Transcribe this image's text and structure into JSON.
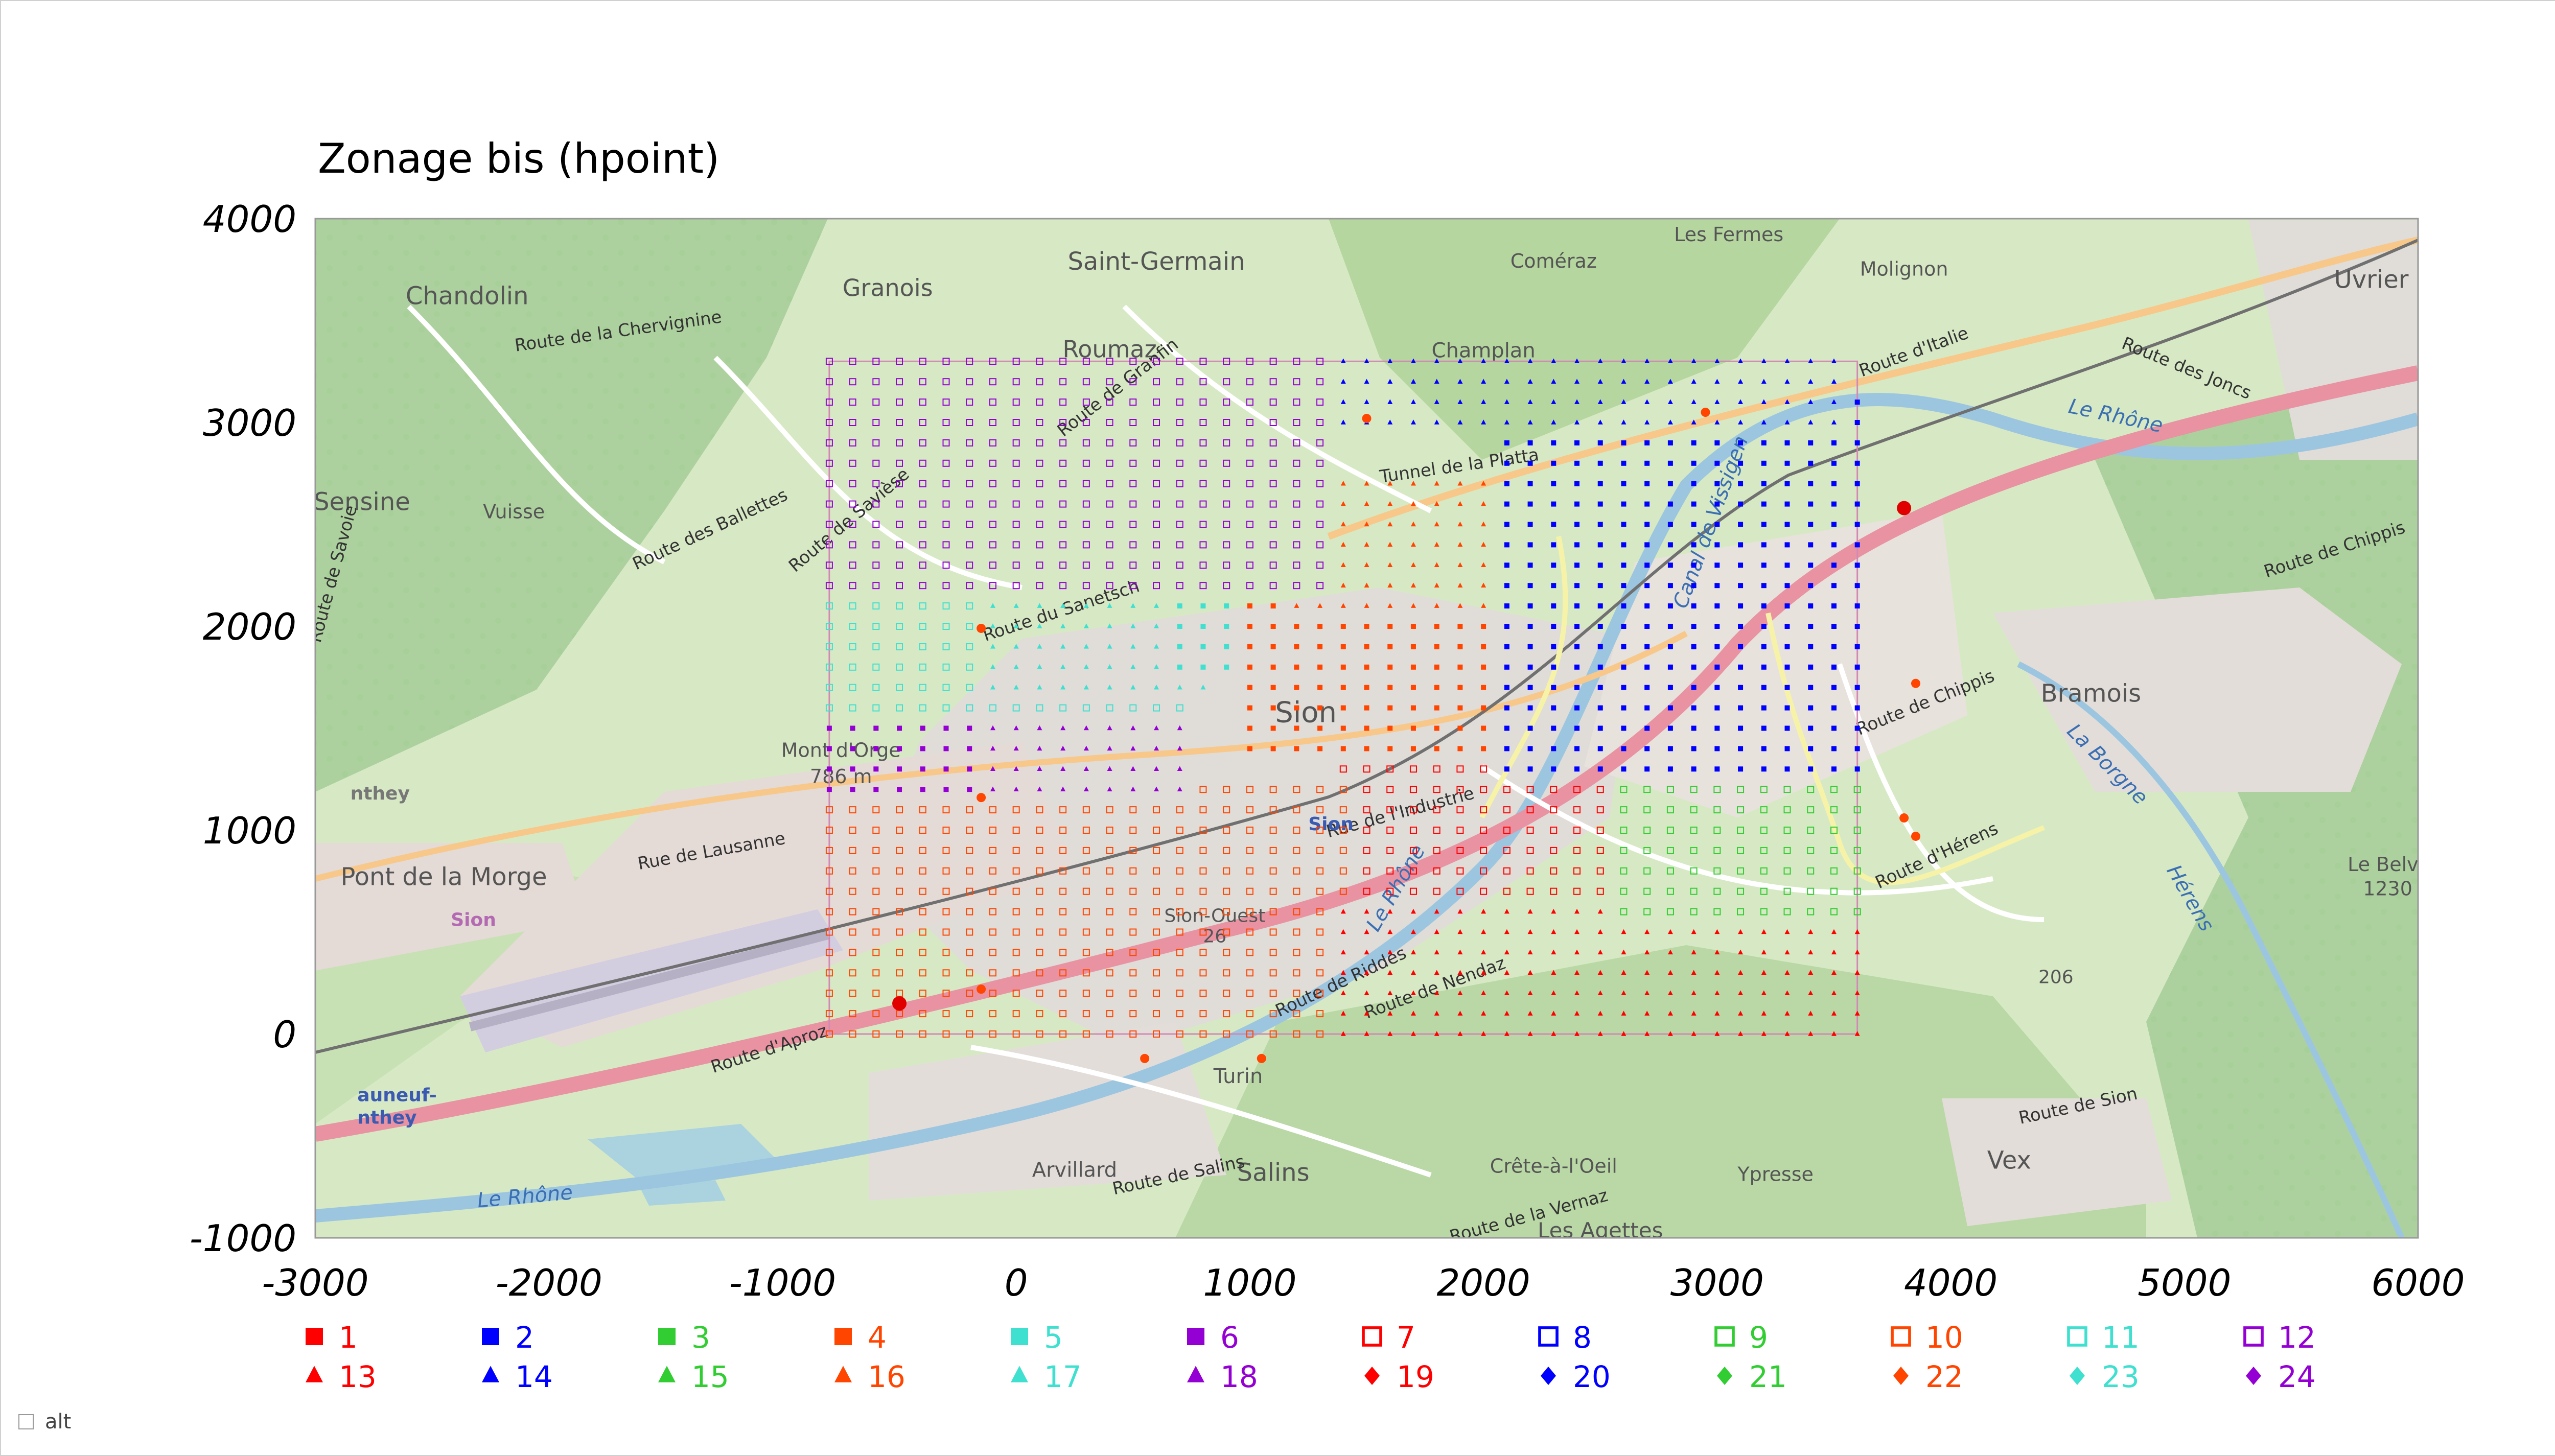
{
  "chart_data": {
    "type": "scatter",
    "title": "Zonage bis (hpoint)",
    "xlabel": "",
    "ylabel": "",
    "xlim": [
      -3000,
      6000
    ],
    "ylim": [
      -1000,
      4000
    ],
    "x_ticks": [
      "-3000",
      "-2000",
      "-1000",
      "0",
      "1000",
      "2000",
      "3000",
      "4000",
      "5000",
      "6000"
    ],
    "y_ticks": [
      "4000",
      "3000",
      "2000",
      "1000",
      "0",
      "-1000"
    ],
    "grid": {
      "x_min": -800,
      "x_max": 3600,
      "y_min": 0,
      "y_max": 3300,
      "step": 100
    },
    "legend_placement": "bottom",
    "series": [
      {
        "name": "1",
        "marker": "square",
        "filled": true,
        "color": "#ff0000"
      },
      {
        "name": "2",
        "marker": "square",
        "filled": true,
        "color": "#0000ff"
      },
      {
        "name": "3",
        "marker": "square",
        "filled": true,
        "color": "#32cd32"
      },
      {
        "name": "4",
        "marker": "square",
        "filled": true,
        "color": "#ff4500"
      },
      {
        "name": "5",
        "marker": "square",
        "filled": true,
        "color": "#40e0d0"
      },
      {
        "name": "6",
        "marker": "square",
        "filled": true,
        "color": "#9400d3"
      },
      {
        "name": "7",
        "marker": "square",
        "filled": false,
        "color": "#ff0000"
      },
      {
        "name": "8",
        "marker": "square",
        "filled": false,
        "color": "#0000ff"
      },
      {
        "name": "9",
        "marker": "square",
        "filled": false,
        "color": "#32cd32"
      },
      {
        "name": "10",
        "marker": "square",
        "filled": false,
        "color": "#ff4500"
      },
      {
        "name": "11",
        "marker": "square",
        "filled": false,
        "color": "#40e0d0"
      },
      {
        "name": "12",
        "marker": "square",
        "filled": false,
        "color": "#9400d3"
      },
      {
        "name": "13",
        "marker": "triangle",
        "filled": true,
        "color": "#ff0000"
      },
      {
        "name": "14",
        "marker": "triangle",
        "filled": true,
        "color": "#0000ff"
      },
      {
        "name": "15",
        "marker": "triangle",
        "filled": true,
        "color": "#32cd32"
      },
      {
        "name": "16",
        "marker": "triangle",
        "filled": true,
        "color": "#ff4500"
      },
      {
        "name": "17",
        "marker": "triangle",
        "filled": true,
        "color": "#40e0d0"
      },
      {
        "name": "18",
        "marker": "triangle",
        "filled": true,
        "color": "#9400d3"
      },
      {
        "name": "19",
        "marker": "diamond",
        "filled": true,
        "color": "#ff0000"
      },
      {
        "name": "20",
        "marker": "diamond",
        "filled": true,
        "color": "#0000ff"
      },
      {
        "name": "21",
        "marker": "diamond",
        "filled": true,
        "color": "#32cd32"
      },
      {
        "name": "22",
        "marker": "diamond",
        "filled": true,
        "color": "#ff4500"
      },
      {
        "name": "23",
        "marker": "diamond",
        "filled": true,
        "color": "#40e0d0"
      },
      {
        "name": "24",
        "marker": "diamond",
        "filled": true,
        "color": "#9400d3"
      }
    ],
    "zones": [
      {
        "series": "12",
        "x": [
          -800,
          1300
        ],
        "y": [
          2200,
          3300
        ]
      },
      {
        "series": "14",
        "x": [
          1400,
          3500
        ],
        "y": [
          3000,
          3300
        ]
      },
      {
        "series": "2",
        "x": [
          2100,
          3600
        ],
        "y": [
          1300,
          3100
        ]
      },
      {
        "series": "16",
        "x": [
          1200,
          2300
        ],
        "y": [
          2100,
          2700
        ]
      },
      {
        "series": "4",
        "x": [
          1000,
          2300
        ],
        "y": [
          1400,
          2100
        ]
      },
      {
        "series": "5",
        "x": [
          700,
          1400
        ],
        "y": [
          1800,
          2700
        ]
      },
      {
        "series": "17",
        "x": [
          -100,
          800
        ],
        "y": [
          1700,
          2200
        ]
      },
      {
        "series": "11",
        "x": [
          -800,
          700
        ],
        "y": [
          1600,
          2200
        ]
      },
      {
        "series": "6",
        "x": [
          -800,
          -200
        ],
        "y": [
          1200,
          1600
        ]
      },
      {
        "series": "18",
        "x": [
          -200,
          700
        ],
        "y": [
          1200,
          1700
        ]
      },
      {
        "series": "9",
        "x": [
          2600,
          3600
        ],
        "y": [
          600,
          1400
        ]
      },
      {
        "series": "15",
        "x": [
          2400,
          3600
        ],
        "y": [
          1400,
          2100
        ]
      },
      {
        "series": "13",
        "x": [
          1400,
          3600
        ],
        "y": [
          0,
          600
        ]
      },
      {
        "series": "10",
        "x": [
          -800,
          1400
        ],
        "y": [
          0,
          1200
        ]
      },
      {
        "series": "7",
        "x": [
          1400,
          2600
        ],
        "y": [
          600,
          1300
        ]
      }
    ],
    "markers": [
      {
        "x": -500,
        "y": 150,
        "color": "#e00000",
        "size": "large"
      },
      {
        "x": 3800,
        "y": 2580,
        "color": "#e00000",
        "size": "large"
      },
      {
        "x": -150,
        "y": 1990,
        "color": "#ff4500",
        "size": "small"
      },
      {
        "x": -150,
        "y": 1160,
        "color": "#ff4500",
        "size": "small"
      },
      {
        "x": -150,
        "y": 220,
        "color": "#ff4500",
        "size": "small"
      },
      {
        "x": 550,
        "y": -120,
        "color": "#ff4500",
        "size": "small"
      },
      {
        "x": 1050,
        "y": -120,
        "color": "#ff4500",
        "size": "small"
      },
      {
        "x": 1500,
        "y": 3020,
        "color": "#ff4500",
        "size": "small"
      },
      {
        "x": 2950,
        "y": 3050,
        "color": "#ff4500",
        "size": "small"
      },
      {
        "x": 3850,
        "y": 1720,
        "color": "#ff4500",
        "size": "small"
      },
      {
        "x": 3800,
        "y": 1060,
        "color": "#ff4500",
        "size": "small"
      },
      {
        "x": 3850,
        "y": 970,
        "color": "#ff4500",
        "size": "small"
      }
    ]
  },
  "map": {
    "places": [
      {
        "name": "Saint-Germain",
        "x": 600,
        "y": 3750,
        "size": 48
      },
      {
        "name": "Chandolin",
        "x": -2350,
        "y": 3580,
        "size": 48
      },
      {
        "name": "Granois",
        "x": -550,
        "y": 3620,
        "size": 46
      },
      {
        "name": "Coméraz",
        "x": 2300,
        "y": 3760,
        "size": 38
      },
      {
        "name": "Les Fermes",
        "x": 3050,
        "y": 3890,
        "size": 38
      },
      {
        "name": "Molignon",
        "x": 3800,
        "y": 3720,
        "size": 38
      },
      {
        "name": "Uvrier",
        "x": 5800,
        "y": 3660,
        "size": 48
      },
      {
        "name": "Roumaz",
        "x": 400,
        "y": 3320,
        "size": 46
      },
      {
        "name": "Champlan",
        "x": 2000,
        "y": 3320,
        "size": 40
      },
      {
        "name": "Sensine",
        "x": -2800,
        "y": 2570,
        "size": 48
      },
      {
        "name": "Vuisse",
        "x": -2150,
        "y": 2530,
        "size": 38
      },
      {
        "name": "Sion",
        "x": 1240,
        "y": 1530,
        "size": 56
      },
      {
        "name": "Mont d'Orge",
        "x": -750,
        "y": 1360,
        "size": 38
      },
      {
        "name": "786 m",
        "x": -750,
        "y": 1230,
        "size": 38
      },
      {
        "name": "Bramois",
        "x": 4600,
        "y": 1630,
        "size": 48
      },
      {
        "name": "Pont de la Morge",
        "x": -2450,
        "y": 730,
        "size": 48
      },
      {
        "name": "Turin",
        "x": 950,
        "y": -240,
        "size": 40
      },
      {
        "name": "Arvillard",
        "x": 250,
        "y": -700,
        "size": 40
      },
      {
        "name": "Salins",
        "x": 1100,
        "y": -720,
        "size": 48
      },
      {
        "name": "Crête-à-l'Oeil",
        "x": 2300,
        "y": -680,
        "size": 38
      },
      {
        "name": "Ypresse",
        "x": 3250,
        "y": -720,
        "size": 38
      },
      {
        "name": "Vex",
        "x": 4250,
        "y": -660,
        "size": 48
      },
      {
        "name": "Les Agettes",
        "x": 2500,
        "y": -1000,
        "size": 42
      },
      {
        "name": "Le Belv",
        "x": 5850,
        "y": 800,
        "size": 38
      },
      {
        "name": "1230",
        "x": 5870,
        "y": 680,
        "size": 38
      },
      {
        "name": "206",
        "x": 4450,
        "y": 250,
        "size": 36
      },
      {
        "name": "Sion-Ouest",
        "x": 850,
        "y": 550,
        "size": 36
      },
      {
        "name": "26",
        "x": 850,
        "y": 450,
        "size": 36
      }
    ],
    "roads": [
      {
        "name": "Route de la Chervignine",
        "x": -1700,
        "y": 3420,
        "angle": -8
      },
      {
        "name": "Route de Granfin",
        "x": 450,
        "y": 3150,
        "angle": -38
      },
      {
        "name": "Route des Ballettes",
        "x": -1300,
        "y": 2450,
        "angle": -25
      },
      {
        "name": "Route de Savièse",
        "x": -700,
        "y": 2500,
        "angle": -40
      },
      {
        "name": "Route du Sanetsch",
        "x": 200,
        "y": 2050,
        "angle": -18
      },
      {
        "name": "Tunnel de la Platta",
        "x": 1900,
        "y": 2760,
        "angle": -8
      },
      {
        "name": "Route d'Italie",
        "x": 3850,
        "y": 3320,
        "angle": -20
      },
      {
        "name": "Route des Joncs",
        "x": 5000,
        "y": 3240,
        "angle": 22
      },
      {
        "name": "Route de Chippis",
        "x": 5650,
        "y": 2350,
        "angle": -18
      },
      {
        "name": "Route de Chippis",
        "x": 3900,
        "y": 1600,
        "angle": -22
      },
      {
        "name": "Rue de l'Industrie",
        "x": 1650,
        "y": 1060,
        "angle": -15
      },
      {
        "name": "Rue de Lausanne",
        "x": -1300,
        "y": 870,
        "angle": -10
      },
      {
        "name": "Route d'Hérens",
        "x": 3950,
        "y": 850,
        "angle": -25
      },
      {
        "name": "Route de Riddes",
        "x": 1400,
        "y": 230,
        "angle": -25
      },
      {
        "name": "Route de Nendaz",
        "x": 1800,
        "y": 200,
        "angle": -20
      },
      {
        "name": "Route d'Aproz",
        "x": -1050,
        "y": -100,
        "angle": -18
      },
      {
        "name": "Route de Salins",
        "x": 700,
        "y": -720,
        "angle": -12
      },
      {
        "name": "Route de la Vernaz",
        "x": 2200,
        "y": -920,
        "angle": -15
      },
      {
        "name": "Route de Sion",
        "x": 4550,
        "y": -380,
        "angle": -12
      },
      {
        "name": "Route de Savoie",
        "x": -2900,
        "y": 2250,
        "angle": -75
      }
    ],
    "rivers": [
      {
        "name": "Le Rhône",
        "x": 4700,
        "y": 3000,
        "angle": 12
      },
      {
        "name": "Le Rhône",
        "x": 1650,
        "y": 700,
        "angle": -60
      },
      {
        "name": "Le Rhône",
        "x": -2100,
        "y": -830,
        "angle": -5
      },
      {
        "name": "La Borgne",
        "x": 4650,
        "y": 1300,
        "angle": 45
      },
      {
        "name": "Canal de Vissigen",
        "x": 3000,
        "y": 2500,
        "angle": -70
      },
      {
        "name": "Hérens",
        "x": 5000,
        "y": 650,
        "angle": 60
      }
    ],
    "labels_small": [
      {
        "name": "Sion",
        "x": 1250,
        "y": 1000,
        "color": "#3b5bb3"
      },
      {
        "name": "Sion",
        "x": -2420,
        "y": 530,
        "color": "#b36ab3"
      },
      {
        "name": "auneuf-",
        "x": -2820,
        "y": -330,
        "color": "#3b5bb3"
      },
      {
        "name": "nthey",
        "x": -2820,
        "y": -440,
        "color": "#3b5bb3"
      },
      {
        "name": "nthey",
        "x": -2850,
        "y": 1150,
        "color": "#777"
      }
    ]
  },
  "alt_toggle": {
    "label": "alt",
    "checked": false
  }
}
